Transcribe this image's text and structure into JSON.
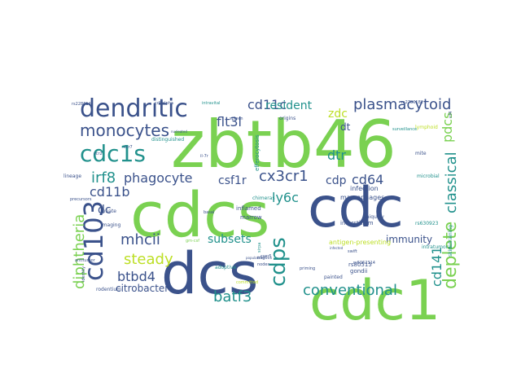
{
  "words": [
    {
      "text": "zbtb46",
      "color": "#7ad151"
    },
    {
      "text": "cdcs",
      "color": "#7ad151"
    },
    {
      "text": "cdc",
      "color": "#3b528b"
    },
    {
      "text": "dcs",
      "color": "#3b528b"
    },
    {
      "text": "cdc1",
      "color": "#7ad151"
    },
    {
      "text": "cd103",
      "color": "#3b528b"
    },
    {
      "text": "dendritic",
      "color": "#3b528b"
    },
    {
      "text": "cdc1s",
      "color": "#21918c"
    },
    {
      "text": "cdps",
      "color": "#21918c"
    },
    {
      "text": "deplete",
      "color": "#7ad151"
    },
    {
      "text": "monocytes",
      "color": "#3b528b"
    },
    {
      "text": "plasmacytoid",
      "color": "#3b528b"
    },
    {
      "text": "conventional",
      "color": "#21918c"
    },
    {
      "text": "irf8",
      "color": "#21918c"
    },
    {
      "text": "phagocyte",
      "color": "#3b528b"
    },
    {
      "text": "cx3cr1",
      "color": "#3b528b"
    },
    {
      "text": "classical",
      "color": "#21918c"
    },
    {
      "text": "cd11b",
      "color": "#3b528b"
    },
    {
      "text": "mhcii",
      "color": "#3b528b"
    },
    {
      "text": "steady",
      "color": "#bddf26"
    },
    {
      "text": "btbd4",
      "color": "#3b528b"
    },
    {
      "text": "batf3",
      "color": "#21918c"
    },
    {
      "text": "diphtheria",
      "color": "#7ad151"
    },
    {
      "text": "cd11c",
      "color": "#3b528b"
    },
    {
      "text": "resident",
      "color": "#21918c"
    },
    {
      "text": "flt3l",
      "color": "#3b528b"
    },
    {
      "text": "csf1r",
      "color": "#3b528b"
    },
    {
      "text": "cd64",
      "color": "#3b528b"
    },
    {
      "text": "cdp",
      "color": "#3b528b"
    },
    {
      "text": "ly6c",
      "color": "#21918c"
    },
    {
      "text": "subsets",
      "color": "#21918c"
    },
    {
      "text": "dtr",
      "color": "#21918c"
    },
    {
      "text": "cd141",
      "color": "#21918c"
    },
    {
      "text": "pdcs",
      "color": "#7ad151"
    },
    {
      "text": "zdc",
      "color": "#bddf26"
    },
    {
      "text": "dc",
      "color": "#3b528b"
    },
    {
      "text": "dt",
      "color": "#3b528b"
    },
    {
      "text": "immunity",
      "color": "#3b528b"
    },
    {
      "text": "citrobacter",
      "color": "#3b528b"
    },
    {
      "text": "macrophages",
      "color": "#3b528b"
    },
    {
      "text": "infection",
      "color": "#3b528b"
    },
    {
      "text": "efferocytosis",
      "color": "#21918c"
    },
    {
      "text": "rs80515",
      "color": "#3b528b"
    },
    {
      "text": "gondii",
      "color": "#3b528b"
    },
    {
      "text": "antigen-presenting",
      "color": "#bddf26"
    },
    {
      "text": "inflamed",
      "color": "#3b528b"
    },
    {
      "text": "marrow",
      "color": "#3b528b"
    },
    {
      "text": "interstitium",
      "color": "#3b528b"
    },
    {
      "text": "lineage",
      "color": "#3b528b"
    },
    {
      "text": "rodentium",
      "color": "#3b528b"
    },
    {
      "text": "adoptive",
      "color": "#21918c"
    },
    {
      "text": "innate",
      "color": "#3b528b"
    },
    {
      "text": "imaging",
      "color": "#3b528b"
    },
    {
      "text": "chimeras",
      "color": "#21918c"
    },
    {
      "text": "microbial",
      "color": "#21918c"
    },
    {
      "text": "intratumoral",
      "color": "#21918c"
    },
    {
      "text": "uniquely",
      "color": "#3b528b"
    },
    {
      "text": "skin-draining",
      "color": "#21918c"
    },
    {
      "text": "origins",
      "color": "#3b528b"
    },
    {
      "text": "lymphoid",
      "color": "#bddf26"
    },
    {
      "text": "distinguished",
      "color": "#21918c"
    },
    {
      "text": "painted",
      "color": "#3b528b"
    },
    {
      "text": "committed",
      "color": "#bddf26"
    },
    {
      "text": "mite",
      "color": "#3b528b"
    },
    {
      "text": "basal",
      "color": "#3b528b"
    },
    {
      "text": "identity",
      "color": "#3b528b"
    },
    {
      "text": "rs630923",
      "color": "#21918c"
    },
    {
      "text": "rs6062314",
      "color": "#3b528b"
    },
    {
      "text": "surveillance",
      "color": "#21918c"
    },
    {
      "text": "cd8alpha",
      "color": "#3b528b"
    },
    {
      "text": "intravital",
      "color": "#21918c"
    },
    {
      "text": "rs228614",
      "color": "#3b528b"
    },
    {
      "text": "nodes",
      "color": "#3b528b"
    },
    {
      "text": "ccr2",
      "color": "#3b528b"
    },
    {
      "text": "il-7r",
      "color": "#3b528b"
    },
    {
      "text": "cxcr5",
      "color": "#3b528b"
    },
    {
      "text": "mig6cs",
      "color": "#3b528b"
    },
    {
      "text": "ccr7",
      "color": "#3b528b"
    },
    {
      "text": "priming",
      "color": "#3b528b"
    },
    {
      "text": "swift",
      "color": "#3b528b"
    },
    {
      "text": "rs2780182",
      "color": "#3b528b"
    },
    {
      "text": "irf4",
      "color": "#3b528b"
    },
    {
      "text": "sirpa",
      "color": "#21918c"
    },
    {
      "text": "gm-csf",
      "color": "#7ad151"
    },
    {
      "text": "precursors",
      "color": "#3b528b"
    },
    {
      "text": "populations",
      "color": "#3b528b"
    },
    {
      "text": "infected",
      "color": "#3b528b"
    },
    {
      "text": "nucleated",
      "color": "#3b528b"
    },
    {
      "text": "antitumor",
      "color": "#3b528b"
    },
    {
      "text": "spleen",
      "color": "#3b528b"
    }
  ]
}
